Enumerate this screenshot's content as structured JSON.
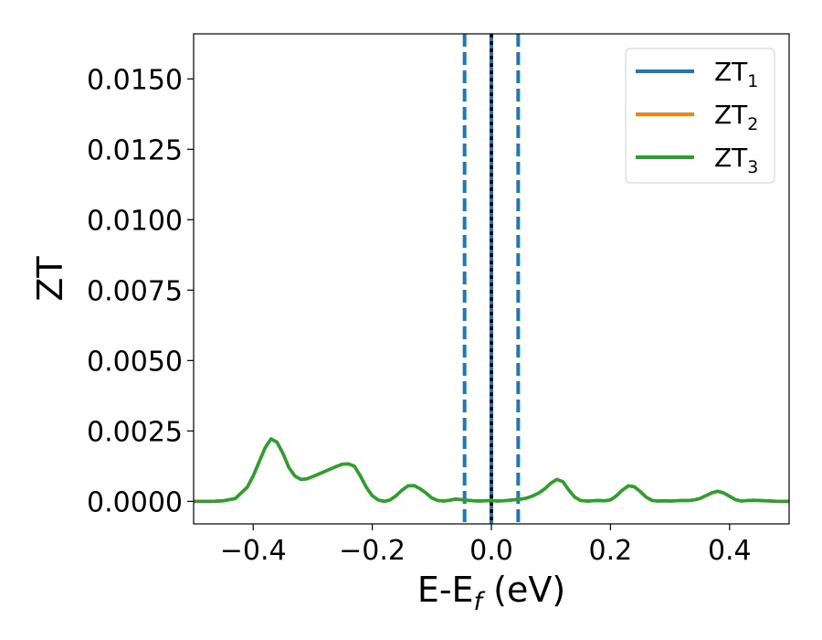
{
  "chart_data": {
    "type": "line",
    "title": "",
    "xlabel_main": "E-E",
    "xlabel_sub": "f",
    "xlabel_unit": " (eV)",
    "ylabel": "ZT",
    "xlim": [
      -0.5,
      0.5
    ],
    "ylim": [
      -0.0008,
      0.0166
    ],
    "xticks": [
      -0.4,
      -0.2,
      0.0,
      0.2,
      0.4
    ],
    "xtick_labels": [
      "−0.4",
      "−0.2",
      "0.0",
      "0.2",
      "0.4"
    ],
    "yticks": [
      0.0,
      0.0025,
      0.005,
      0.0075,
      0.01,
      0.0125,
      0.015
    ],
    "ytick_labels": [
      "0.0000",
      "0.0025",
      "0.0050",
      "0.0075",
      "0.0100",
      "0.0125",
      "0.0150"
    ],
    "grid": false,
    "legend_position": "top-right",
    "colors": {
      "ZT1": "#1f77b4",
      "ZT2": "#ff7f0e",
      "ZT3": "#2ca02c",
      "fermi": "#000000"
    },
    "series": [
      {
        "name": "ZT",
        "sub": "1",
        "color": "#1f77b4",
        "same_as": "ZT3"
      },
      {
        "name": "ZT",
        "sub": "2",
        "color": "#ff7f0e",
        "same_as": "ZT3"
      },
      {
        "name": "ZT",
        "sub": "3",
        "color": "#2ca02c",
        "x": [
          -0.5,
          -0.47,
          -0.45,
          -0.43,
          -0.41,
          -0.4,
          -0.39,
          -0.38,
          -0.37,
          -0.36,
          -0.35,
          -0.34,
          -0.33,
          -0.32,
          -0.31,
          -0.3,
          -0.29,
          -0.28,
          -0.27,
          -0.26,
          -0.25,
          -0.24,
          -0.23,
          -0.22,
          -0.21,
          -0.2,
          -0.19,
          -0.18,
          -0.17,
          -0.16,
          -0.15,
          -0.14,
          -0.13,
          -0.12,
          -0.11,
          -0.1,
          -0.09,
          -0.08,
          -0.07,
          -0.06,
          -0.05,
          -0.04,
          -0.03,
          -0.02,
          -0.01,
          0.0,
          0.01,
          0.02,
          0.03,
          0.04,
          0.05,
          0.06,
          0.07,
          0.08,
          0.09,
          0.1,
          0.11,
          0.12,
          0.13,
          0.14,
          0.15,
          0.16,
          0.17,
          0.18,
          0.19,
          0.2,
          0.21,
          0.22,
          0.23,
          0.24,
          0.25,
          0.26,
          0.27,
          0.28,
          0.29,
          0.3,
          0.31,
          0.32,
          0.33,
          0.34,
          0.35,
          0.36,
          0.37,
          0.38,
          0.39,
          0.4,
          0.41,
          0.42,
          0.43,
          0.44,
          0.45,
          0.46,
          0.47,
          0.48,
          0.5
        ],
        "y": [
          0.0,
          0.0,
          2e-05,
          0.0001,
          0.0005,
          0.0009,
          0.0014,
          0.0019,
          0.00222,
          0.0021,
          0.0017,
          0.0012,
          0.0009,
          0.00078,
          0.0008,
          0.00088,
          0.00097,
          0.00106,
          0.00115,
          0.00124,
          0.00132,
          0.00133,
          0.00125,
          0.0009,
          0.0005,
          0.0002,
          5e-05,
          0.0,
          5e-05,
          0.0002,
          0.0004,
          0.00055,
          0.00056,
          0.00045,
          0.0003,
          0.00012,
          3e-05,
          1e-05,
          4e-05,
          8e-05,
          6e-05,
          4e-05,
          2e-05,
          1e-05,
          2e-05,
          3e-05,
          1e-05,
          2e-05,
          4e-05,
          6e-05,
          8e-05,
          0.00012,
          0.0002,
          0.0003,
          0.00045,
          0.00065,
          0.00078,
          0.0007,
          0.0004,
          0.00015,
          3e-05,
          1e-05,
          2e-05,
          3e-05,
          2e-05,
          5e-05,
          0.0002,
          0.0004,
          0.00055,
          0.00052,
          0.00035,
          0.00015,
          3e-05,
          1e-05,
          2e-05,
          1e-05,
          2e-05,
          3e-05,
          3e-05,
          5e-05,
          0.0001,
          0.0002,
          0.0003,
          0.00036,
          0.0003,
          0.00018,
          6e-05,
          1e-05,
          3e-05,
          4e-05,
          3e-05,
          2e-05,
          1e-05,
          0.0,
          0.0
        ]
      }
    ],
    "vlines": [
      {
        "x": -0.045,
        "style": "dashed",
        "color": "#1f77b4"
      },
      {
        "x": 0.045,
        "style": "dashed",
        "color": "#1f77b4"
      },
      {
        "x": 0.0,
        "style": "solid",
        "color": "#1f77b4"
      },
      {
        "x": 0.0,
        "style": "dotted",
        "color": "#000000"
      }
    ]
  }
}
